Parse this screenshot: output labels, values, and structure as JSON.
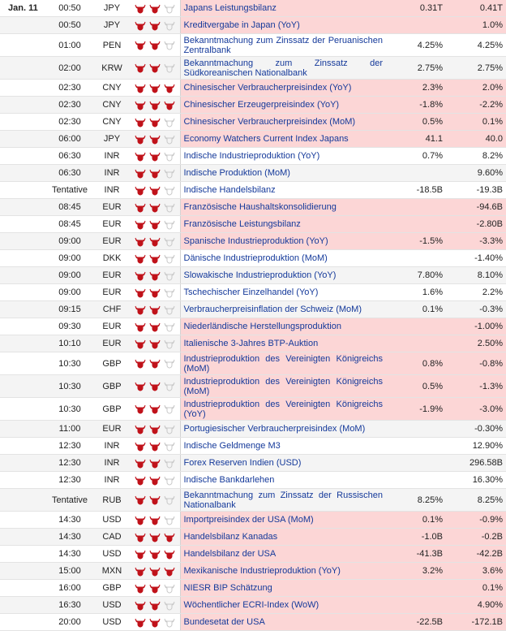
{
  "date_label": "Jan. 11",
  "colors": {
    "bull_active": "#c0121a",
    "bull_inactive": "#c9c9c9",
    "highlight": "#fcd6d6",
    "event_text": "#14399a"
  },
  "rows": [
    {
      "time": "00:50",
      "cur": "JPY",
      "imp": 2,
      "event": "Japans Leistungsbilanz",
      "actual": "0.31T",
      "prev": "0.41T",
      "hl": true
    },
    {
      "time": "00:50",
      "cur": "JPY",
      "imp": 2,
      "event": "Kreditvergabe in Japan (YoY)",
      "actual": "",
      "prev": "1.0%",
      "hl": true
    },
    {
      "time": "01:00",
      "cur": "PEN",
      "imp": 2,
      "event": "Bekanntmachung zum Zinssatz der Peruanischen Zentralbank",
      "actual": "4.25%",
      "prev": "4.25%",
      "hl": false,
      "tall": true
    },
    {
      "time": "02:00",
      "cur": "KRW",
      "imp": 2,
      "event": "Bekanntmachung zum Zinssatz der Südkoreanischen Nationalbank",
      "actual": "2.75%",
      "prev": "2.75%",
      "hl": false,
      "tall": true
    },
    {
      "time": "02:30",
      "cur": "CNY",
      "imp": 3,
      "event": "Chinesischer Verbraucherpreisindex (YoY)",
      "actual": "2.3%",
      "prev": "2.0%",
      "hl": true,
      "grp": true
    },
    {
      "time": "02:30",
      "cur": "CNY",
      "imp": 3,
      "event": "Chinesischer Erzeugerpreisindex (YoY)",
      "actual": "-1.8%",
      "prev": "-2.2%",
      "hl": true
    },
    {
      "time": "02:30",
      "cur": "CNY",
      "imp": 2,
      "event": "Chinesischer Verbraucherpreisindex (MoM)",
      "actual": "0.5%",
      "prev": "0.1%",
      "hl": true
    },
    {
      "time": "06:00",
      "cur": "JPY",
      "imp": 2,
      "event": "Economy Watchers Current Index Japans",
      "actual": "41.1",
      "prev": "40.0",
      "hl": true
    },
    {
      "time": "06:30",
      "cur": "INR",
      "imp": 2,
      "event": "Indische Industrieproduktion (YoY)",
      "actual": "0.7%",
      "prev": "8.2%",
      "hl": false
    },
    {
      "time": "06:30",
      "cur": "INR",
      "imp": 2,
      "event": "Indische Produktion (MoM)",
      "actual": "",
      "prev": "9.60%",
      "hl": false
    },
    {
      "time": "Tentative",
      "cur": "INR",
      "imp": 2,
      "event": "Indische Handelsbilanz",
      "actual": "-18.5B",
      "prev": "-19.3B",
      "hl": false
    },
    {
      "time": "08:45",
      "cur": "EUR",
      "imp": 2,
      "event": "Französische Haushaltskonsolidierung",
      "actual": "",
      "prev": "-94.6B",
      "hl": true,
      "grp": true
    },
    {
      "time": "08:45",
      "cur": "EUR",
      "imp": 2,
      "event": "Französische Leistungsbilanz",
      "actual": "",
      "prev": "-2.80B",
      "hl": true
    },
    {
      "time": "09:00",
      "cur": "EUR",
      "imp": 2,
      "event": "Spanische Industrieproduktion (YoY)",
      "actual": "-1.5%",
      "prev": "-3.3%",
      "hl": true
    },
    {
      "time": "09:00",
      "cur": "DKK",
      "imp": 2,
      "event": "Dänische Industrieproduktion (MoM)",
      "actual": "",
      "prev": "-1.40%",
      "hl": false
    },
    {
      "time": "09:00",
      "cur": "EUR",
      "imp": 2,
      "event": "Slowakische Industrieproduktion (YoY)",
      "actual": "7.80%",
      "prev": "8.10%",
      "hl": false
    },
    {
      "time": "09:00",
      "cur": "EUR",
      "imp": 2,
      "event": "Tschechischer Einzelhandel (YoY)",
      "actual": "1.6%",
      "prev": "2.2%",
      "hl": false
    },
    {
      "time": "09:15",
      "cur": "CHF",
      "imp": 2,
      "event": "Verbraucherpreisinflation der Schweiz (MoM)",
      "actual": "0.1%",
      "prev": "-0.3%",
      "hl": false
    },
    {
      "time": "09:30",
      "cur": "EUR",
      "imp": 2,
      "event": "Niederländische Herstellungsproduktion",
      "actual": "",
      "prev": "-1.00%",
      "hl": true,
      "grp": true
    },
    {
      "time": "10:10",
      "cur": "EUR",
      "imp": 2,
      "event": "Italienische 3-Jahres BTP-Auktion",
      "actual": "",
      "prev": "2.50%",
      "hl": true
    },
    {
      "time": "10:30",
      "cur": "GBP",
      "imp": 2,
      "event": "Industrieproduktion des Vereinigten Königreichs (MoM)",
      "actual": "0.8%",
      "prev": "-0.8%",
      "hl": true,
      "tall": true
    },
    {
      "time": "10:30",
      "cur": "GBP",
      "imp": 2,
      "event": "Industrieproduktion des Vereinigten Königreichs (MoM)",
      "actual": "0.5%",
      "prev": "-1.3%",
      "hl": true,
      "tall": true
    },
    {
      "time": "10:30",
      "cur": "GBP",
      "imp": 2,
      "event": "Industrieproduktion des Vereinigten Königreichs (YoY)",
      "actual": "-1.9%",
      "prev": "-3.0%",
      "hl": true,
      "tall": true
    },
    {
      "time": "11:00",
      "cur": "EUR",
      "imp": 2,
      "event": "Portugiesischer Verbraucherpreisindex (MoM)",
      "actual": "",
      "prev": "-0.30%",
      "hl": false
    },
    {
      "time": "12:30",
      "cur": "INR",
      "imp": 2,
      "event": "Indische Geldmenge M3",
      "actual": "",
      "prev": "12.90%",
      "hl": false
    },
    {
      "time": "12:30",
      "cur": "INR",
      "imp": 2,
      "event": "Forex Reserven Indien (USD)",
      "actual": "",
      "prev": "296.58B",
      "hl": false
    },
    {
      "time": "12:30",
      "cur": "INR",
      "imp": 2,
      "event": "Indische Bankdarlehen",
      "actual": "",
      "prev": "16.30%",
      "hl": false
    },
    {
      "time": "Tentative",
      "cur": "RUB",
      "imp": 2,
      "event": "Bekanntmachung zum Zinssatz der Russischen Nationalbank",
      "actual": "8.25%",
      "prev": "8.25%",
      "hl": false,
      "tall": true
    },
    {
      "time": "14:30",
      "cur": "USD",
      "imp": 2,
      "event": "Importpreisindex der USA (MoM)",
      "actual": "0.1%",
      "prev": "-0.9%",
      "hl": true,
      "grp": true
    },
    {
      "time": "14:30",
      "cur": "CAD",
      "imp": 3,
      "event": "Handelsbilanz Kanadas",
      "actual": "-1.0B",
      "prev": "-0.2B",
      "hl": true
    },
    {
      "time": "14:30",
      "cur": "USD",
      "imp": 3,
      "event": "Handelsbilanz der USA",
      "actual": "-41.3B",
      "prev": "-42.2B",
      "hl": true
    },
    {
      "time": "15:00",
      "cur": "MXN",
      "imp": 3,
      "event": "Mexikanische Industrieproduktion (YoY)",
      "actual": "3.2%",
      "prev": "3.6%",
      "hl": true
    },
    {
      "time": "16:00",
      "cur": "GBP",
      "imp": 2,
      "event": "NIESR BIP Schätzung",
      "actual": "",
      "prev": "0.1%",
      "hl": true
    },
    {
      "time": "16:30",
      "cur": "USD",
      "imp": 2,
      "event": "Wöchentlicher ECRI-Index (WoW)",
      "actual": "",
      "prev": "4.90%",
      "hl": true
    },
    {
      "time": "20:00",
      "cur": "USD",
      "imp": 2,
      "event": "Bundesetat der USA",
      "actual": "-22.5B",
      "prev": "-172.1B",
      "hl": true
    }
  ]
}
